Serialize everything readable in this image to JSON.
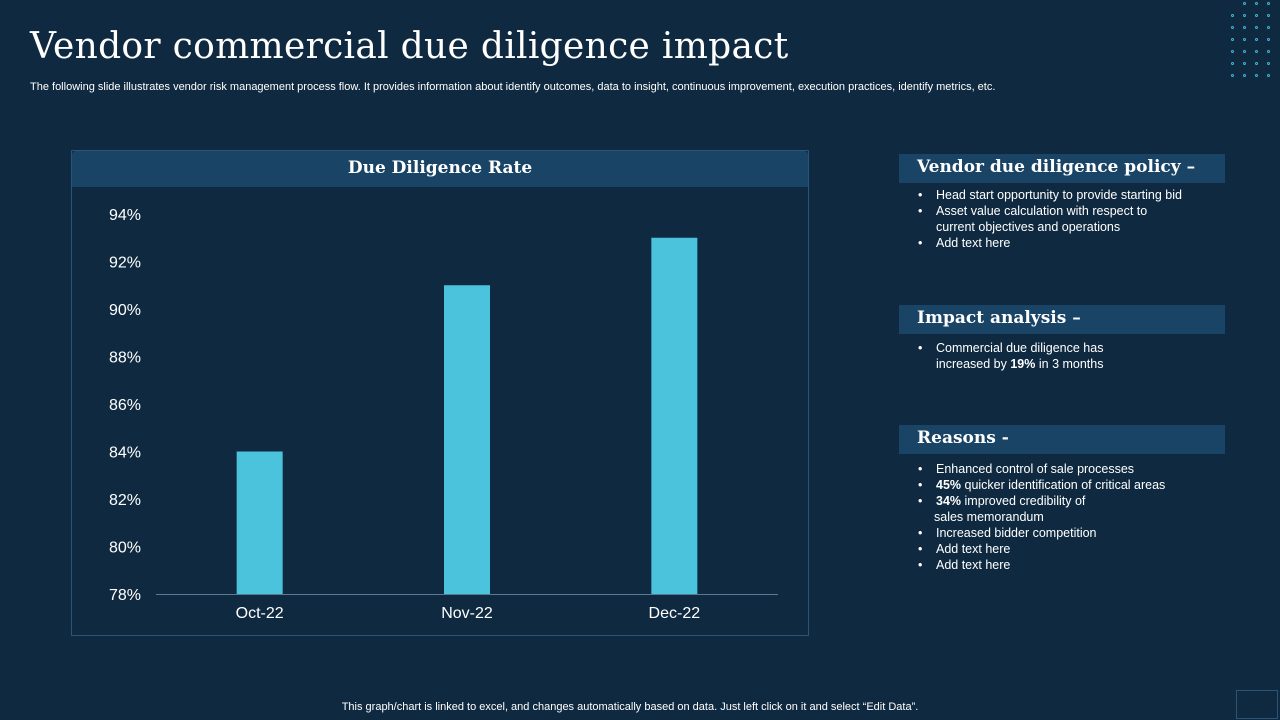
{
  "slide": {
    "title": "Vendor commercial due diligence impact",
    "subtitle": "The following slide illustrates vendor risk management process flow. It provides information about identify outcomes, data to insight, continuous improvement, execution practices, identify metrics, etc.",
    "footnote": "This graph/chart is linked to excel,  and changes automatically based on data. Just left click on it and select “Edit Data”."
  },
  "colors": {
    "background": "#0f2a40",
    "panel_header": "#1a4466",
    "bar": "#4cc3dc",
    "accent_dots": "#3fb6d8"
  },
  "chart_data": {
    "type": "bar",
    "title": "Due Diligence Rate",
    "categories": [
      "Oct-22",
      "Nov-22",
      "Dec-22"
    ],
    "values": [
      84,
      91,
      93
    ],
    "ylim": [
      78,
      94
    ],
    "ytick_step": 2,
    "ytick_labels": [
      "78%",
      "80%",
      "82%",
      "84%",
      "86%",
      "88%",
      "90%",
      "92%",
      "94%"
    ],
    "grid": false,
    "xlabel": "",
    "ylabel": ""
  },
  "sections": {
    "policy": {
      "title": "Vendor due diligence policy –",
      "items": [
        "Head start opportunity to provide  starting bid",
        "Asset value  calculation with respect to",
        "current  objectives  and operations",
        "Add text here"
      ]
    },
    "impact": {
      "title": "Impact analysis –",
      "items": [
        "Commercial  due diligence has",
        "increased by ",
        "19%",
        "  in 3 months"
      ]
    },
    "reasons": {
      "title": "Reasons -",
      "items": [
        "Enhanced  control of sale processes",
        "45%",
        "  quicker  identification of critical areas",
        "34%",
        "  improved  credibility of",
        "sales memorandum",
        "Increased  bidder competition",
        "Add text here",
        "Add text here"
      ]
    }
  }
}
